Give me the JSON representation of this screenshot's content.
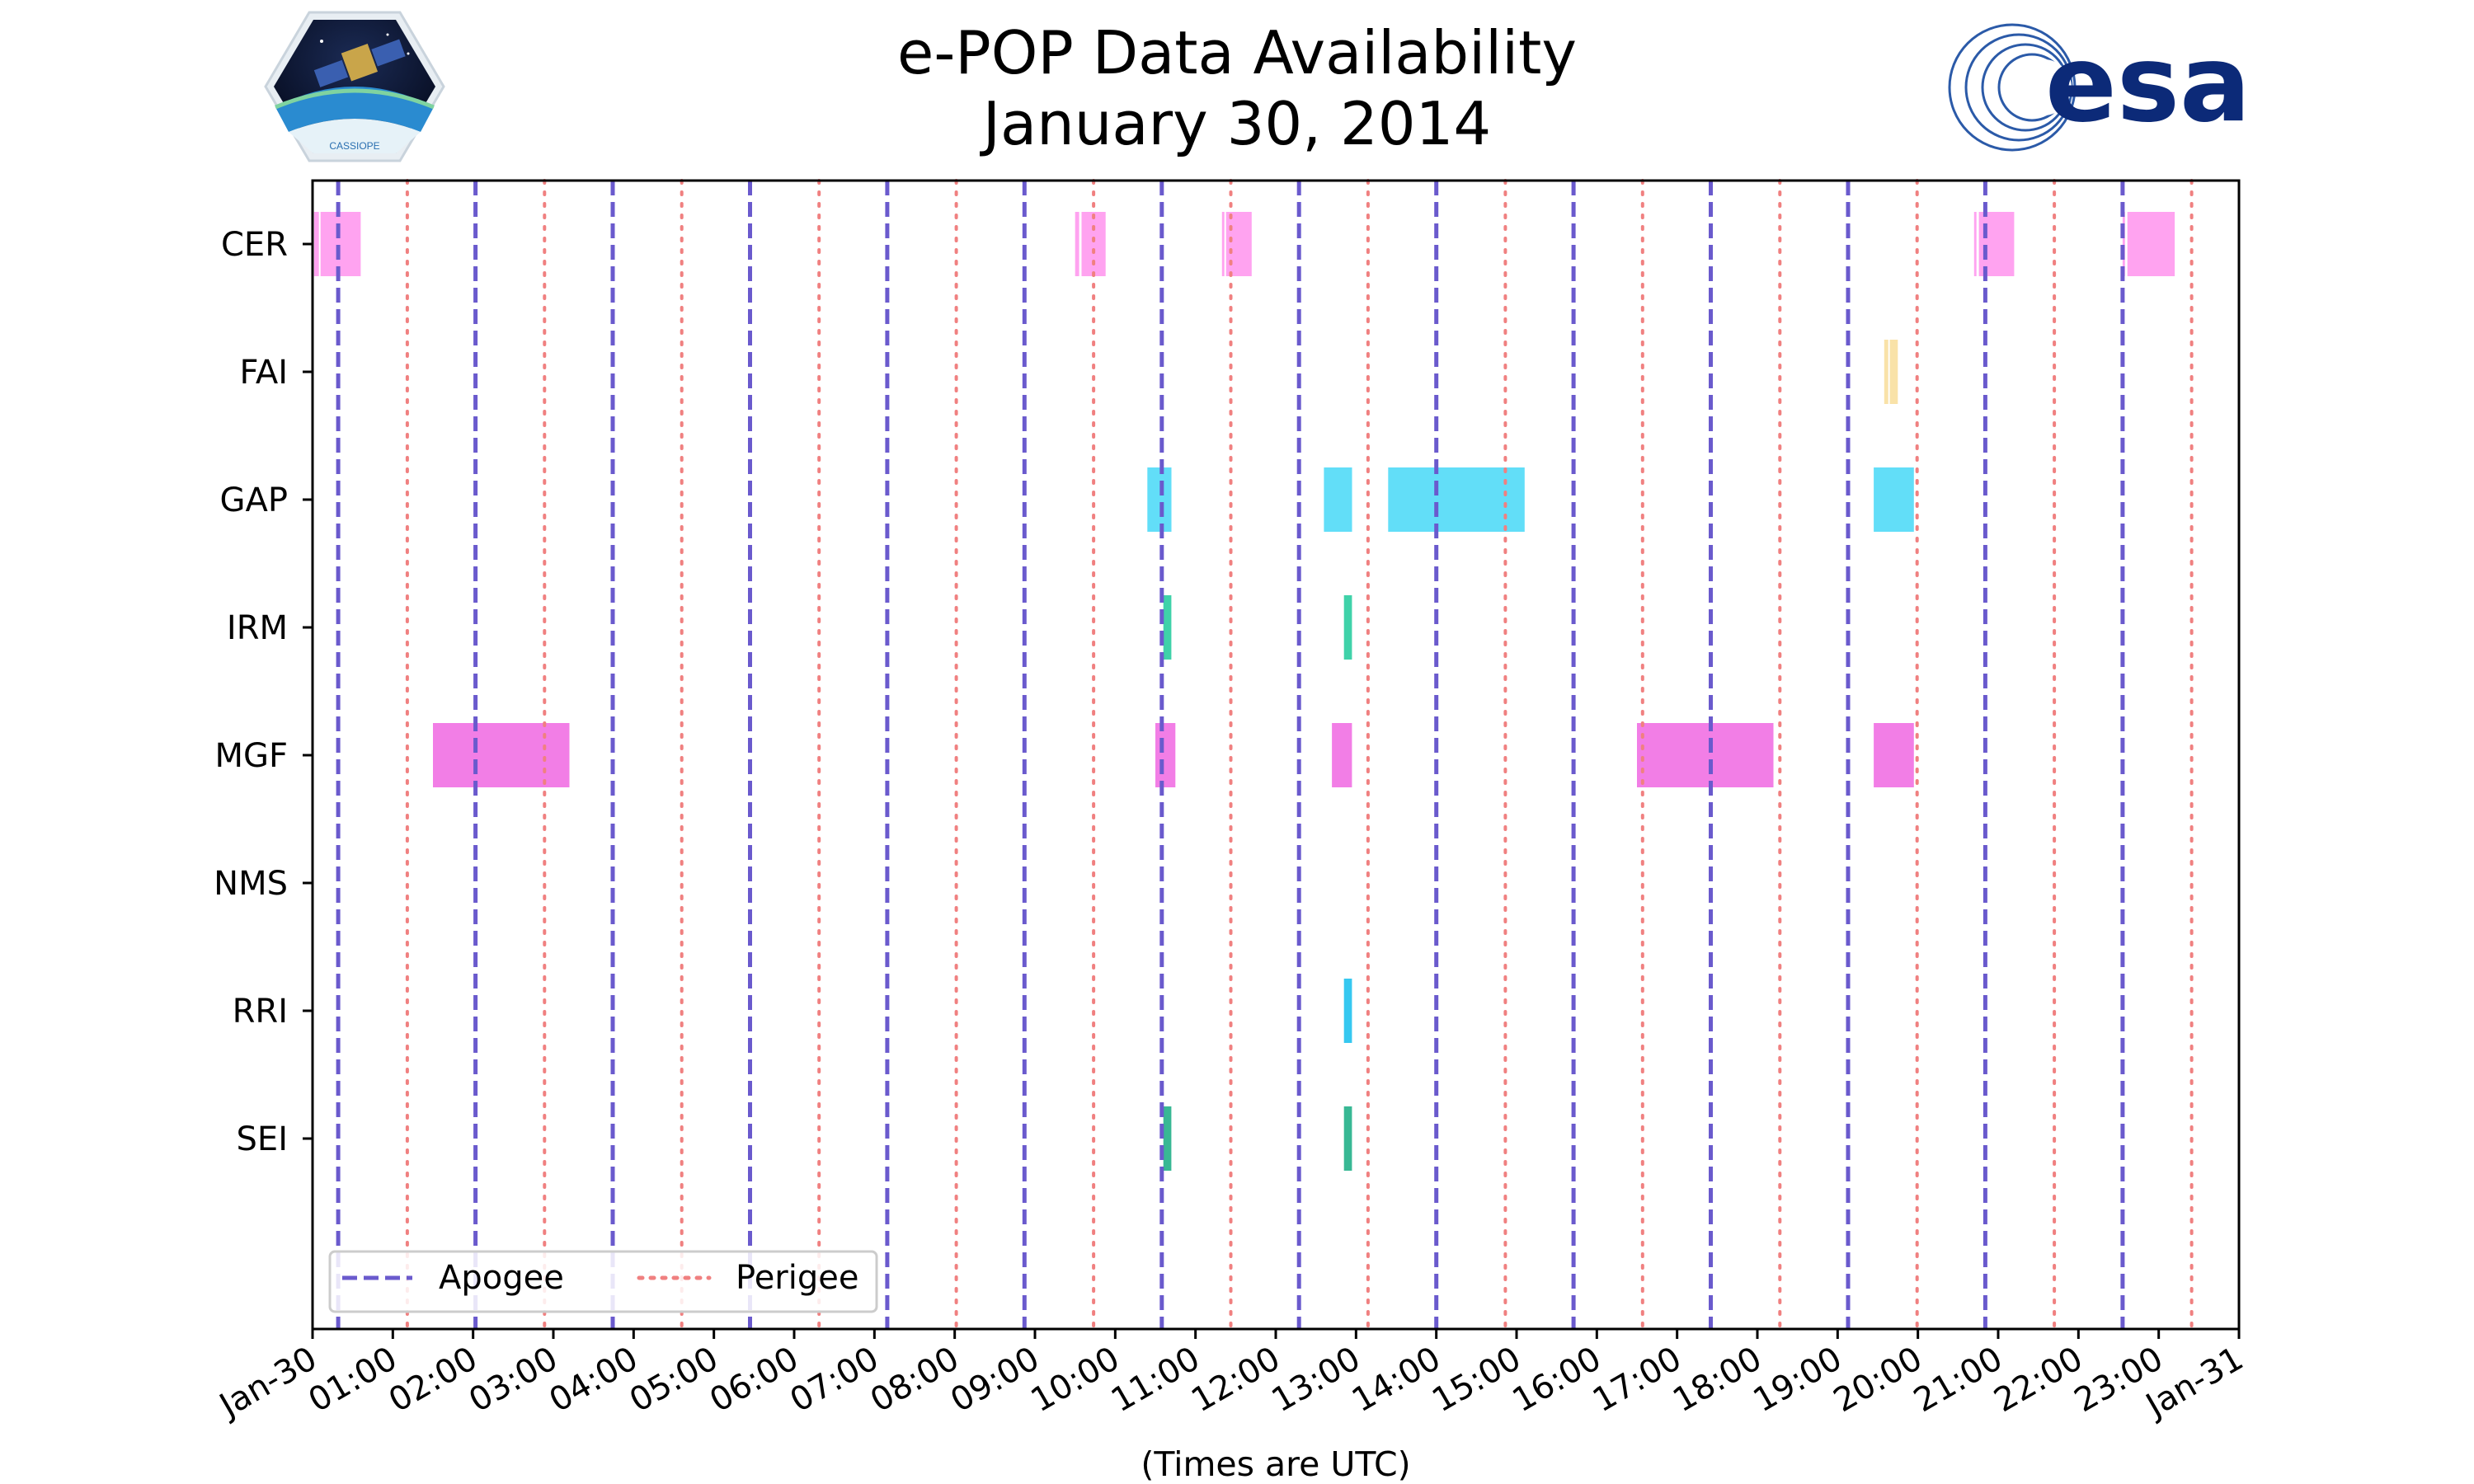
{
  "logos": {
    "left": "CASSIOPE",
    "right": "esa"
  },
  "colors": {
    "apogee": "#6a5acd",
    "perigee": "#f08080",
    "CER": "#ffa3f0",
    "FAI": "#f9e2a8",
    "GAP": "#62def8",
    "IRM": "#3fd2a9",
    "MGF": "#f27ee6",
    "RRI": "#36c8f0",
    "SEI": "#38b894",
    "legend_border": "#cccccc"
  },
  "chart_data": {
    "type": "timeline",
    "title": "e-POP Data Availability",
    "subtitle": "January 30, 2014",
    "xlabel": "(Times are UTC)",
    "x_unit": "hours",
    "xlim": [
      0,
      24
    ],
    "x_ticks": [
      0,
      1,
      2,
      3,
      4,
      5,
      6,
      7,
      8,
      9,
      10,
      11,
      12,
      13,
      14,
      15,
      16,
      17,
      18,
      19,
      20,
      21,
      22,
      23,
      24
    ],
    "x_tick_labels": [
      "Jan-30",
      "01:00",
      "02:00",
      "03:00",
      "04:00",
      "05:00",
      "06:00",
      "07:00",
      "08:00",
      "09:00",
      "10:00",
      "11:00",
      "12:00",
      "13:00",
      "14:00",
      "15:00",
      "16:00",
      "17:00",
      "18:00",
      "19:00",
      "20:00",
      "21:00",
      "22:00",
      "23:00",
      "Jan-31"
    ],
    "instruments": [
      "CER",
      "FAI",
      "GAP",
      "IRM",
      "MGF",
      "NMS",
      "RRI",
      "SEI"
    ],
    "apogee_times": [
      0.32,
      2.03,
      3.74,
      5.45,
      7.16,
      8.87,
      10.58,
      12.29,
      14.0,
      15.71,
      17.42,
      19.13,
      20.84,
      22.55
    ],
    "perigee_times": [
      1.18,
      2.89,
      4.6,
      6.31,
      8.02,
      9.73,
      11.44,
      13.15,
      14.86,
      16.57,
      18.28,
      19.99,
      21.7,
      23.41
    ],
    "legend": {
      "entries": [
        "Apogee",
        "Perigee"
      ],
      "position": "lower-left"
    },
    "intervals": [
      {
        "instrument": "CER",
        "start": 0.02,
        "end": 0.08
      },
      {
        "instrument": "CER",
        "start": 0.1,
        "end": 0.6
      },
      {
        "instrument": "CER",
        "start": 9.5,
        "end": 9.55
      },
      {
        "instrument": "CER",
        "start": 9.58,
        "end": 9.88
      },
      {
        "instrument": "CER",
        "start": 11.33,
        "end": 11.36
      },
      {
        "instrument": "CER",
        "start": 11.38,
        "end": 11.7
      },
      {
        "instrument": "CER",
        "start": 20.7,
        "end": 20.73
      },
      {
        "instrument": "CER",
        "start": 20.76,
        "end": 21.2
      },
      {
        "instrument": "CER",
        "start": 22.55,
        "end": 22.58
      },
      {
        "instrument": "CER",
        "start": 22.61,
        "end": 23.2
      },
      {
        "instrument": "FAI",
        "start": 19.58,
        "end": 19.63
      },
      {
        "instrument": "FAI",
        "start": 19.65,
        "end": 19.75
      },
      {
        "instrument": "GAP",
        "start": 10.4,
        "end": 10.7
      },
      {
        "instrument": "GAP",
        "start": 12.6,
        "end": 12.95
      },
      {
        "instrument": "GAP",
        "start": 13.4,
        "end": 15.1
      },
      {
        "instrument": "GAP",
        "start": 19.45,
        "end": 19.95
      },
      {
        "instrument": "IRM",
        "start": 10.6,
        "end": 10.7
      },
      {
        "instrument": "IRM",
        "start": 12.85,
        "end": 12.95
      },
      {
        "instrument": "MGF",
        "start": 1.5,
        "end": 3.2
      },
      {
        "instrument": "MGF",
        "start": 10.5,
        "end": 10.75
      },
      {
        "instrument": "MGF",
        "start": 12.7,
        "end": 12.95
      },
      {
        "instrument": "MGF",
        "start": 16.5,
        "end": 18.2
      },
      {
        "instrument": "MGF",
        "start": 19.45,
        "end": 19.95
      },
      {
        "instrument": "RRI",
        "start": 12.85,
        "end": 12.95
      },
      {
        "instrument": "SEI",
        "start": 10.6,
        "end": 10.7
      },
      {
        "instrument": "SEI",
        "start": 12.85,
        "end": 12.95
      }
    ]
  }
}
